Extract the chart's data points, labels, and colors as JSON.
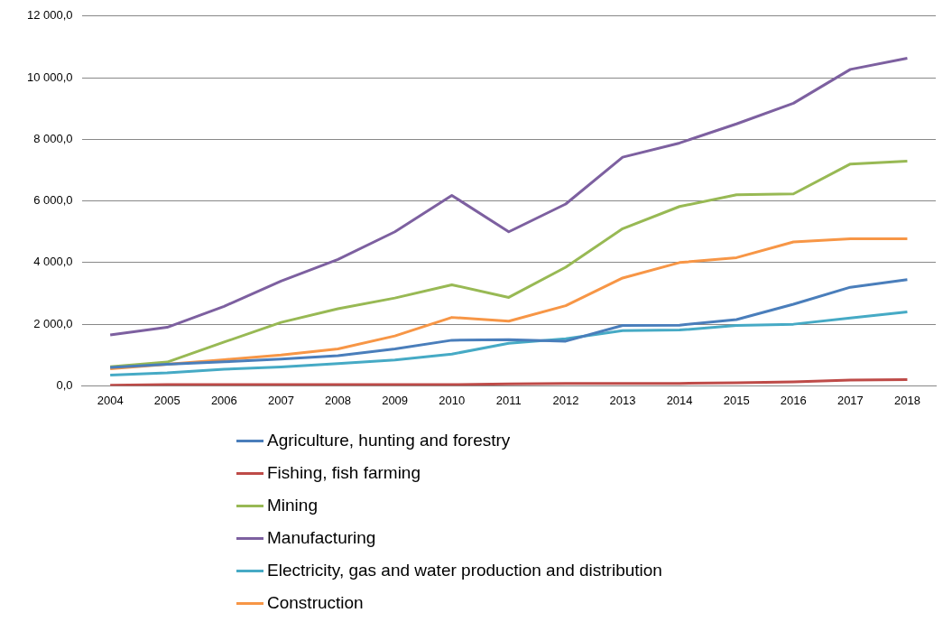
{
  "chart_data": {
    "type": "line",
    "categories": [
      "2004",
      "2005",
      "2006",
      "2007",
      "2008",
      "2009",
      "2010",
      "2011",
      "2012",
      "2013",
      "2014",
      "2015",
      "2016",
      "2017",
      "2018"
    ],
    "series": [
      {
        "name": "Agriculture, hunting and forestry",
        "color": "#4a7ebb",
        "values": [
          600,
          700,
          780,
          870,
          980,
          1200,
          1480,
          1500,
          1450,
          1960,
          1970,
          2150,
          2650,
          3200,
          3450
        ]
      },
      {
        "name": "Fishing, fish farming",
        "color": "#be4b48",
        "values": [
          20,
          40,
          40,
          40,
          40,
          40,
          40,
          60,
          80,
          80,
          80,
          100,
          130,
          190,
          200
        ]
      },
      {
        "name": "Mining",
        "color": "#98b954",
        "values": [
          620,
          770,
          1420,
          2060,
          2500,
          2850,
          3280,
          2870,
          3850,
          5100,
          5820,
          6200,
          6230,
          7200,
          7290
        ]
      },
      {
        "name": "Manufacturing",
        "color": "#7d60a0",
        "values": [
          1650,
          1900,
          2580,
          3400,
          4100,
          5000,
          6180,
          5000,
          5900,
          7420,
          7880,
          8500,
          9170,
          10270,
          10630
        ]
      },
      {
        "name": "Electricity, gas and water production and distribution",
        "color": "#46aac5",
        "values": [
          350,
          420,
          540,
          610,
          720,
          840,
          1030,
          1380,
          1530,
          1790,
          1810,
          1960,
          2000,
          2200,
          2400
        ]
      },
      {
        "name": "Construction",
        "color": "#f79646",
        "values": [
          550,
          700,
          850,
          1000,
          1200,
          1620,
          2220,
          2100,
          2600,
          3500,
          4000,
          4160,
          4670,
          4770,
          4770
        ]
      }
    ],
    "ylim": [
      0,
      12000
    ],
    "yticks": [
      {
        "value": 0,
        "label": "0,0"
      },
      {
        "value": 2000,
        "label": "2 000,0"
      },
      {
        "value": 4000,
        "label": "4 000,0"
      },
      {
        "value": 6000,
        "label": "6 000,0"
      },
      {
        "value": 8000,
        "label": "8 000,0"
      },
      {
        "value": 10000,
        "label": "10 000,0"
      },
      {
        "value": 12000,
        "label": "12 000,0"
      }
    ],
    "grid": "y",
    "legend": "bottom",
    "marker": "none",
    "line_style": "solid"
  }
}
